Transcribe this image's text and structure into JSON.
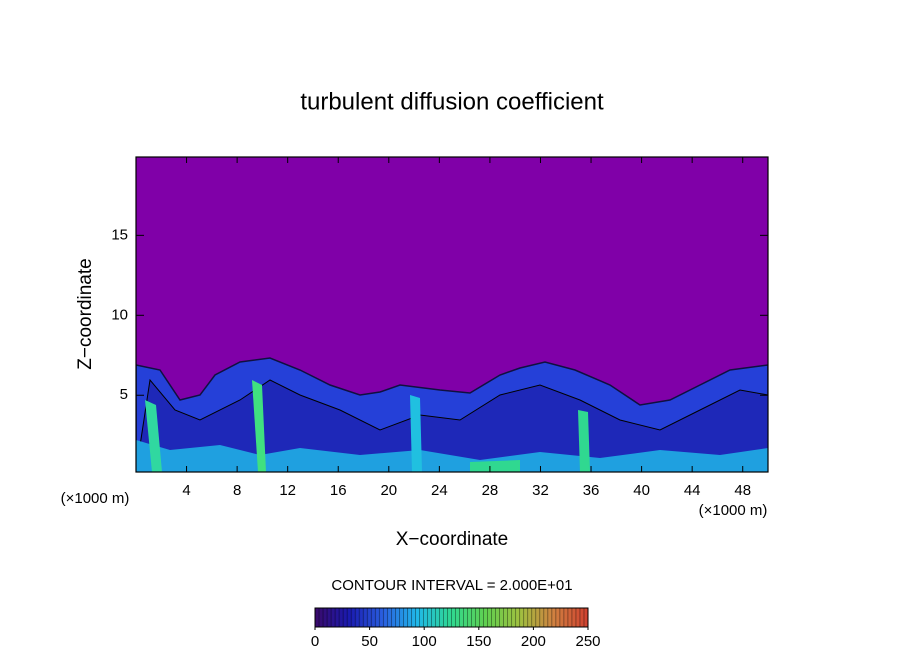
{
  "chart_data": {
    "type": "contour",
    "title": "turbulent diffusion coefficient",
    "xlabel": "X−coordinate",
    "ylabel": "Z−coordinate",
    "unit_labels": [
      "(×1000 m)",
      "(×1000 m)"
    ],
    "xlim": [
      0,
      50
    ],
    "ylim": [
      0.2,
      19.9
    ],
    "xticks": [
      4,
      8,
      12,
      16,
      20,
      24,
      28,
      32,
      36,
      40,
      44,
      48
    ],
    "yticks": [
      5,
      10,
      15
    ],
    "annotation": "CONTOUR INTERVAL = 2.000E+01",
    "colorbar": {
      "lim": [
        0,
        250
      ],
      "ticks": [
        0,
        50,
        100,
        150,
        200,
        250
      ],
      "colors": [
        "#3a0a6a",
        "#1a1ab0",
        "#2a60e0",
        "#20b8e8",
        "#30d890",
        "#60d050",
        "#a0c040",
        "#d08040",
        "#d04030"
      ]
    }
  }
}
